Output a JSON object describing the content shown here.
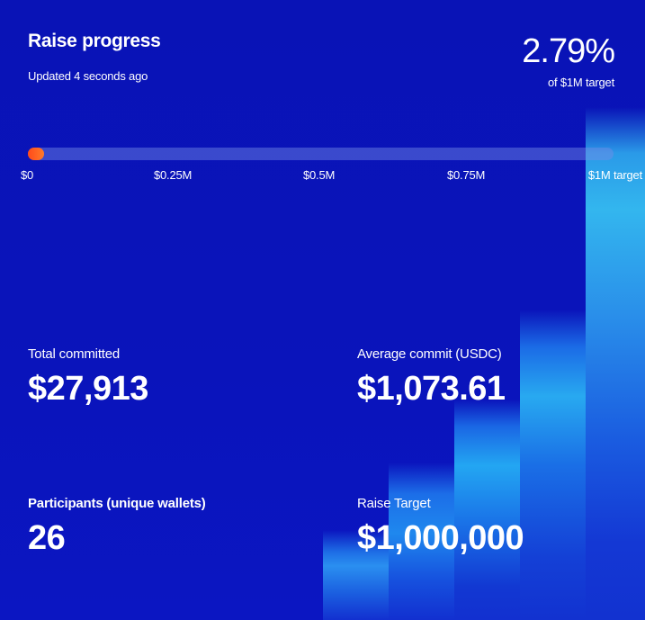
{
  "header": {
    "title": "Raise progress",
    "updated": "Updated 4 seconds ago",
    "percent": "2.79%",
    "percent_caption": "of $1M target"
  },
  "progress": {
    "raised": 27913,
    "target": 1000000,
    "fill_fraction": 0.0279,
    "ticks": [
      "$0",
      "$0.25M",
      "$0.5M",
      "$0.75M",
      "$1M target"
    ]
  },
  "stats": [
    {
      "label": "Total committed",
      "value": "$27,913"
    },
    {
      "label": "Average commit (USDC)",
      "value": "$1,073.61"
    },
    {
      "label": "Participants (unique wallets)",
      "value": "26"
    },
    {
      "label": "Raise Target",
      "value": "$1,000,000"
    }
  ],
  "colors": {
    "background": "#0a12b8",
    "progress_fill": "#ff5a1f",
    "track": "#5a6ad8",
    "text": "#ffffff",
    "accent_glow": "#33b6ee"
  }
}
